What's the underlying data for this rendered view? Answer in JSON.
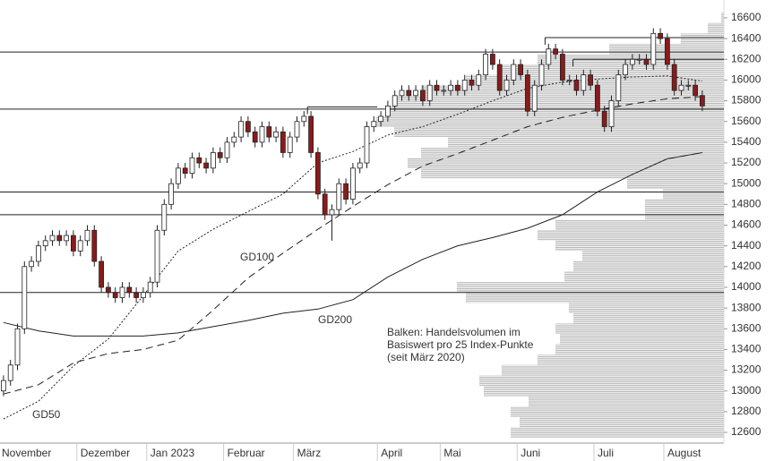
{
  "chart_data": {
    "type": "candlestick",
    "categories": [
      null,
      null,
      null,
      null,
      null,
      null,
      null,
      null,
      null,
      null,
      null,
      "Dezember",
      null,
      null,
      null,
      null,
      null,
      null,
      null,
      null,
      null,
      "Jan 2023",
      null,
      null,
      null,
      null,
      null,
      null,
      null,
      null,
      null,
      null,
      "Februar",
      null,
      null,
      null,
      null,
      null,
      null,
      null,
      null,
      null,
      "März",
      null,
      null,
      null,
      null,
      null,
      null,
      null,
      null,
      null,
      null,
      null,
      "April",
      null,
      null,
      null,
      null,
      null,
      null,
      null,
      null,
      "Mai",
      null,
      null,
      null,
      null,
      null,
      null,
      null,
      null,
      null,
      null,
      "Juni",
      null,
      null,
      null,
      null,
      null,
      null,
      null,
      null,
      null,
      null,
      "Juli",
      null,
      null,
      null,
      null,
      null,
      null,
      null,
      null,
      null,
      "August",
      null,
      null,
      null,
      null,
      null
    ],
    "first_label": "November",
    "open": [
      13000,
      13100,
      13250,
      13600,
      14200,
      14250,
      14400,
      14450,
      14500,
      14450,
      14500,
      14350,
      14450,
      14550,
      14250,
      14000,
      13950,
      13900,
      14000,
      13950,
      13900,
      13950,
      14050,
      14550,
      14800,
      15000,
      15150,
      15100,
      15250,
      15200,
      15150,
      15300,
      15250,
      15400,
      15450,
      15600,
      15500,
      15400,
      15550,
      15450,
      15500,
      15300,
      15450,
      15600,
      15650,
      15300,
      14900,
      14700,
      14750,
      15000,
      14850,
      15150,
      15200,
      15550,
      15600,
      15650,
      15750,
      15850,
      15900,
      15850,
      15900,
      15800,
      15950,
      15900,
      15900,
      15950,
      15900,
      16000,
      15950,
      16050,
      16250,
      16150,
      15900,
      16000,
      16150,
      16050,
      15700,
      15950,
      16150,
      16300,
      16250,
      16000,
      16000,
      15900,
      16050,
      15950,
      15700,
      15550,
      15800,
      16050,
      16150,
      16200,
      16200,
      16150,
      16450,
      16400,
      16150,
      15900,
      15950,
      15950,
      15850
    ],
    "high": [
      13150,
      13300,
      13650,
      14250,
      14300,
      14450,
      14500,
      14550,
      14550,
      14550,
      14550,
      14500,
      14600,
      14600,
      14300,
      14050,
      14000,
      14050,
      14050,
      14000,
      14000,
      14100,
      14600,
      14850,
      15050,
      15200,
      15200,
      15300,
      15300,
      15250,
      15350,
      15350,
      15450,
      15500,
      15650,
      15650,
      15550,
      15600,
      15600,
      15550,
      15550,
      15500,
      15650,
      15700,
      15700,
      15350,
      14950,
      14800,
      15050,
      15050,
      15200,
      15250,
      15600,
      15650,
      15700,
      15800,
      15900,
      15950,
      15950,
      15950,
      15950,
      16000,
      16000,
      15950,
      16000,
      16000,
      16050,
      16050,
      16100,
      16300,
      16300,
      16200,
      16050,
      16200,
      16200,
      16100,
      16000,
      16200,
      16350,
      16350,
      16300,
      16050,
      16050,
      16100,
      16100,
      16000,
      15750,
      15850,
      16100,
      16200,
      16250,
      16250,
      16250,
      16500,
      16500,
      16450,
      16200,
      16000,
      16000,
      16000,
      15900
    ],
    "low": [
      12950,
      13050,
      13200,
      13550,
      14150,
      14200,
      14350,
      14400,
      14400,
      14400,
      14300,
      14300,
      14400,
      14200,
      13950,
      13900,
      13850,
      13850,
      13900,
      13850,
      13850,
      13900,
      14000,
      14500,
      14750,
      14950,
      15050,
      15050,
      15150,
      15100,
      15100,
      15200,
      15200,
      15350,
      15400,
      15450,
      15350,
      15350,
      15400,
      15400,
      15250,
      15250,
      15400,
      15550,
      15250,
      14850,
      14650,
      14450,
      14700,
      14800,
      14800,
      15100,
      15150,
      15500,
      15550,
      15600,
      15700,
      15800,
      15800,
      15800,
      15750,
      15750,
      15850,
      15850,
      15850,
      15850,
      15850,
      15900,
      15900,
      16000,
      16100,
      15850,
      15850,
      15950,
      16000,
      15650,
      15650,
      15900,
      16100,
      16200,
      15950,
      15950,
      15850,
      15850,
      15900,
      15650,
      15500,
      15500,
      15750,
      16000,
      16100,
      16150,
      16100,
      16100,
      16350,
      16100,
      15850,
      15850,
      15900,
      15800,
      15700
    ],
    "close": [
      13100,
      13250,
      13600,
      14200,
      14250,
      14400,
      14450,
      14500,
      14450,
      14500,
      14350,
      14450,
      14550,
      14250,
      14000,
      13950,
      13900,
      14000,
      13950,
      13900,
      13950,
      14050,
      14550,
      14800,
      15000,
      15150,
      15100,
      15250,
      15200,
      15150,
      15300,
      15250,
      15400,
      15450,
      15600,
      15500,
      15400,
      15550,
      15450,
      15500,
      15300,
      15450,
      15600,
      15650,
      15300,
      14900,
      14700,
      14750,
      15000,
      14850,
      15150,
      15200,
      15550,
      15600,
      15650,
      15750,
      15850,
      15900,
      15850,
      15900,
      15800,
      15950,
      15900,
      15900,
      15950,
      15900,
      16000,
      15950,
      16050,
      16250,
      16150,
      15900,
      16000,
      16150,
      16050,
      15700,
      15950,
      16150,
      16300,
      16250,
      16000,
      16000,
      15900,
      16050,
      15950,
      15700,
      15550,
      15800,
      16050,
      16150,
      16200,
      16200,
      16150,
      16450,
      16400,
      16150,
      15900,
      15950,
      15950,
      15850,
      15750
    ],
    "up_color": "#ffffff",
    "down_color": "#8b1a1a",
    "wick_color": "#222222",
    "ylim": [
      12500,
      16750
    ],
    "yticks": [
      12600,
      12800,
      13000,
      13200,
      13400,
      13600,
      13800,
      14000,
      14200,
      14400,
      14600,
      14800,
      15000,
      15200,
      15400,
      15600,
      15800,
      16000,
      16200,
      16400,
      16600
    ],
    "lines": [
      {
        "name": "GD50",
        "color": "#222222",
        "dash": "2,2",
        "x": [
          0,
          5,
          10,
          15,
          20,
          25,
          30,
          35,
          40,
          45,
          50,
          55,
          60,
          65,
          70,
          75,
          80,
          85,
          90,
          95,
          100
        ],
        "values": [
          12730,
          12900,
          13240,
          13500,
          13920,
          14350,
          14560,
          14730,
          14900,
          15200,
          15310,
          15470,
          15550,
          15670,
          15800,
          15920,
          15980,
          16010,
          16030,
          16040,
          15990
        ]
      },
      {
        "name": "GD100",
        "color": "#222222",
        "dash": "8,5",
        "x": [
          0,
          5,
          10,
          15,
          20,
          25,
          30,
          35,
          40,
          45,
          50,
          55,
          60,
          65,
          70,
          75,
          80,
          85,
          90,
          95,
          100
        ],
        "values": [
          12970,
          13060,
          13270,
          13360,
          13400,
          13490,
          13780,
          14090,
          14330,
          14560,
          14780,
          14990,
          15170,
          15290,
          15420,
          15550,
          15640,
          15710,
          15770,
          15820,
          15840
        ]
      },
      {
        "name": "GD200",
        "color": "#222222",
        "dash": "none",
        "x": [
          0,
          5,
          10,
          15,
          20,
          25,
          30,
          35,
          40,
          45,
          50,
          55,
          60,
          65,
          70,
          75,
          80,
          85,
          90,
          95,
          100
        ],
        "values": [
          13660,
          13580,
          13530,
          13530,
          13530,
          13560,
          13620,
          13680,
          13750,
          13790,
          13880,
          14100,
          14270,
          14400,
          14480,
          14570,
          14700,
          14920,
          15090,
          15240,
          15300
        ]
      }
    ],
    "levels": [
      16270,
      15720,
      14920,
      14700,
      13950
    ],
    "segments": [
      {
        "value": 16410,
        "start": 78
      },
      {
        "value": 16200,
        "start": 82
      },
      {
        "value": 15740,
        "start": 44,
        "end": 53
      }
    ],
    "volume_profile": {
      "label": [
        "Balken: Handelsvolumen im",
        "Basiswert pro 25 Index-Punkte",
        "(seit März 2020)"
      ],
      "levels": [
        12600,
        12700,
        12800,
        12900,
        13000,
        13100,
        13200,
        13300,
        13400,
        13500,
        13600,
        13700,
        13800,
        13900,
        14000,
        14100,
        14200,
        14300,
        14400,
        14500,
        14600,
        14700,
        14800,
        14900,
        15000,
        15100,
        15200,
        15300,
        15400,
        15500,
        15600,
        15700,
        15800,
        15900,
        16000,
        16100,
        16200,
        16300,
        16400,
        16500,
        16600
      ],
      "values": [
        238,
        228,
        238,
        218,
        268,
        273,
        248,
        208,
        188,
        183,
        188,
        168,
        173,
        288,
        298,
        178,
        168,
        158,
        188,
        208,
        188,
        88,
        88,
        68,
        108,
        338,
        353,
        338,
        308,
        368,
        388,
        378,
        368,
        338,
        288,
        248,
        208,
        128,
        48,
        18,
        3
      ],
      "xlim": [
        0,
        808
      ]
    }
  }
}
